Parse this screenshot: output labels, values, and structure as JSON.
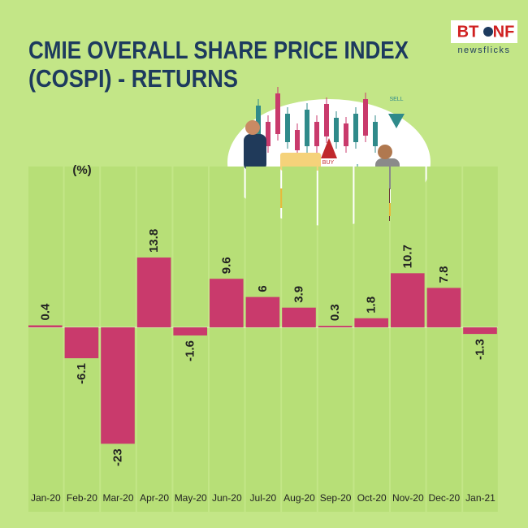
{
  "chart_data": {
    "type": "bar",
    "title": [
      "CMIE OVERALL SHARE PRICE INDEX",
      "(COSPI) - RETURNS"
    ],
    "unit_label": "(%)",
    "categories": [
      "Jan-20",
      "Feb-20",
      "Mar-20",
      "Apr-20",
      "May-20",
      "Jun-20",
      "Jul-20",
      "Aug-20",
      "Sep-20",
      "Oct-20",
      "Nov-20",
      "Dec-20",
      "Jan-21"
    ],
    "values": [
      0.4,
      -6.1,
      -23,
      13.8,
      -1.6,
      9.6,
      6,
      3.9,
      0.3,
      1.8,
      10.7,
      7.8,
      -1.3
    ],
    "color": "#c93a6c"
  },
  "logo": {
    "bt": "BT",
    "nf": "NF",
    "sub": "newsflicks"
  },
  "illustration": {
    "buy": "BUY",
    "sell": "SELL"
  }
}
